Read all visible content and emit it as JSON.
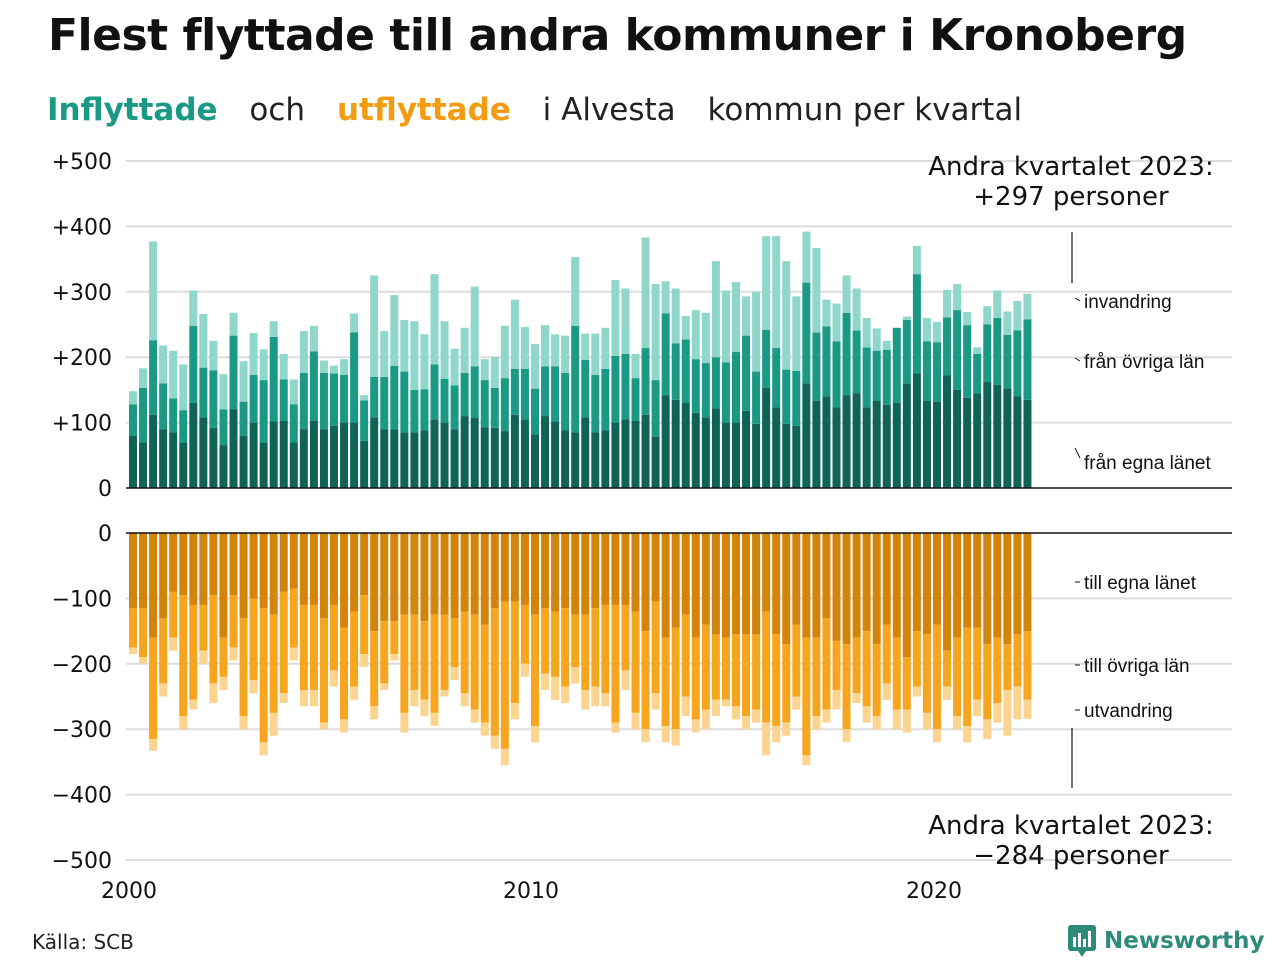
{
  "title": "Flest flyttade till andra kommuner i Kronoberg",
  "subtitle": {
    "part1": "Inflyttade",
    "part2": "och",
    "part3": "utflyttade",
    "part4": "i Alvesta",
    "part5": "kommun per kvartal"
  },
  "source": "Källa: SCB",
  "brand": "Newsworthy",
  "colors": {
    "inflow_own": "#0f6357",
    "inflow_other": "#1a9985",
    "inflow_immigration": "#8fd6cb",
    "outflow_own": "#d4830b",
    "outflow_other": "#f7a51f",
    "outflow_emigration": "#fbd48f",
    "grid": "#dddddd"
  },
  "chart_data": {
    "type": "bar",
    "stacked": true,
    "x_start": "2000 Q1",
    "x_ticks": [
      "2000",
      "2010",
      "2020"
    ],
    "y_ticks_top": [
      "+500",
      "+400",
      "+300",
      "+200",
      "+100",
      "0"
    ],
    "y_ticks_bottom": [
      "0",
      "−100",
      "−200",
      "−300",
      "−400",
      "−500"
    ],
    "ylim_top": [
      0,
      500
    ],
    "ylim_bottom": [
      -500,
      0
    ],
    "annotation_top": [
      "Andra kvartalet 2023:",
      "+297 personer"
    ],
    "annotation_bottom": [
      "Andra kvartalet 2023:",
      "−284 personer"
    ],
    "top_series_labels": [
      "invandring",
      "från övriga län",
      "från egna länet"
    ],
    "bottom_series_labels": [
      "till egna länet",
      "till övriga län",
      "utvandring"
    ],
    "inflow_totals": [
      148,
      183,
      377,
      218,
      210,
      189,
      302,
      266,
      225,
      174,
      268,
      194,
      237,
      212,
      255,
      205,
      166,
      240,
      248,
      195,
      187,
      197,
      267,
      142,
      325,
      240,
      295,
      257,
      255,
      235,
      327,
      255,
      213,
      245,
      308,
      197,
      200,
      248,
      288,
      246,
      220,
      249,
      235,
      233,
      353,
      236,
      236,
      245,
      318,
      305,
      205,
      383,
      312,
      316,
      305,
      263,
      272,
      268,
      347,
      302,
      315,
      293,
      300,
      385,
      385,
      347,
      293,
      392,
      367,
      288,
      282,
      325,
      305,
      260,
      244,
      225,
      227,
      262,
      370,
      260,
      254,
      303,
      312,
      269,
      215,
      278,
      302,
      270,
      286,
      297
    ],
    "inflow_own": [
      80,
      70,
      112,
      90,
      85,
      70,
      130,
      108,
      92,
      65,
      120,
      80,
      100,
      70,
      102,
      103,
      70,
      90,
      103,
      90,
      95,
      100,
      100,
      72,
      108,
      90,
      90,
      85,
      85,
      88,
      105,
      100,
      90,
      110,
      107,
      93,
      92,
      87,
      112,
      105,
      82,
      110,
      102,
      88,
      85,
      108,
      85,
      88,
      100,
      105,
      103,
      112,
      78,
      142,
      135,
      130,
      115,
      108,
      122,
      100,
      100,
      118,
      98,
      153,
      123,
      98,
      95,
      160,
      133,
      140,
      123,
      142,
      145,
      123,
      133,
      127,
      130,
      160,
      175,
      133,
      132,
      172,
      150,
      138,
      145,
      162,
      158,
      152,
      140,
      135
    ],
    "inflow_other": [
      48,
      83,
      114,
      70,
      52,
      49,
      118,
      76,
      88,
      55,
      113,
      52,
      73,
      95,
      129,
      63,
      58,
      86,
      106,
      86,
      80,
      73,
      138,
      62,
      62,
      80,
      97,
      93,
      65,
      63,
      84,
      67,
      67,
      66,
      79,
      72,
      61,
      81,
      70,
      77,
      70,
      76,
      84,
      88,
      163,
      88,
      88,
      94,
      102,
      100,
      65,
      102,
      87,
      125,
      86,
      97,
      82,
      83,
      78,
      92,
      108,
      115,
      80,
      89,
      91,
      83,
      84,
      154,
      105,
      107,
      101,
      126,
      96,
      92,
      77,
      84,
      115,
      97,
      152,
      91,
      91,
      89,
      122,
      111,
      60,
      88,
      102,
      82,
      101,
      123
    ],
    "inflow_immigration": [
      20,
      30,
      151,
      58,
      73,
      70,
      54,
      82,
      45,
      54,
      35,
      62,
      64,
      47,
      24,
      39,
      38,
      64,
      39,
      19,
      12,
      24,
      29,
      8,
      155,
      70,
      108,
      79,
      105,
      84,
      138,
      88,
      56,
      69,
      122,
      32,
      47,
      80,
      106,
      64,
      68,
      63,
      49,
      57,
      105,
      40,
      63,
      63,
      116,
      100,
      37,
      169,
      147,
      49,
      84,
      36,
      75,
      77,
      147,
      110,
      107,
      60,
      122,
      143,
      171,
      166,
      114,
      78,
      129,
      41,
      58,
      57,
      64,
      45,
      34,
      14,
      -18,
      5,
      43,
      36,
      31,
      42,
      40,
      20,
      10,
      28,
      42,
      36,
      45,
      39
    ],
    "outflow_totals": [
      -185,
      -200,
      -333,
      -250,
      -180,
      -300,
      -270,
      -200,
      -260,
      -240,
      -195,
      -300,
      -245,
      -340,
      -310,
      -260,
      -195,
      -265,
      -265,
      -300,
      -235,
      -305,
      -255,
      -205,
      -285,
      -240,
      -195,
      -305,
      -265,
      -280,
      -295,
      -250,
      -225,
      -265,
      -290,
      -310,
      -330,
      -355,
      -285,
      -220,
      -320,
      -240,
      -255,
      -260,
      -230,
      -270,
      -265,
      -265,
      -305,
      -240,
      -300,
      -320,
      -270,
      -320,
      -325,
      -280,
      -305,
      -300,
      -280,
      -265,
      -285,
      -300,
      -290,
      -340,
      -320,
      -310,
      -270,
      -355,
      -300,
      -290,
      -270,
      -320,
      -260,
      -290,
      -300,
      -255,
      -300,
      -305,
      -250,
      -300,
      -320,
      -255,
      -300,
      -320,
      -280,
      -315,
      -290,
      -310,
      -285,
      -284
    ],
    "outflow_own": [
      -115,
      -115,
      -160,
      -130,
      -90,
      -95,
      -110,
      -110,
      -95,
      -160,
      -95,
      -130,
      -100,
      -115,
      -125,
      -90,
      -85,
      -110,
      -110,
      -130,
      -110,
      -145,
      -120,
      -95,
      -150,
      -135,
      -135,
      -125,
      -125,
      -135,
      -125,
      -125,
      -130,
      -120,
      -125,
      -140,
      -115,
      -105,
      -105,
      -110,
      -125,
      -115,
      -120,
      -115,
      -125,
      -125,
      -115,
      -110,
      -110,
      -110,
      -120,
      -150,
      -105,
      -160,
      -145,
      -125,
      -160,
      -140,
      -155,
      -160,
      -155,
      -155,
      -155,
      -120,
      -155,
      -170,
      -140,
      -160,
      -160,
      -130,
      -165,
      -170,
      -160,
      -150,
      -170,
      -140,
      -160,
      -190,
      -150,
      -155,
      -140,
      -180,
      -160,
      -145,
      -145,
      -170,
      -160,
      -170,
      -155,
      -150
    ],
    "outflow_other": [
      -60,
      -75,
      -155,
      -100,
      -70,
      -185,
      -145,
      -70,
      -135,
      -60,
      -80,
      -150,
      -125,
      -205,
      -150,
      -155,
      -90,
      -130,
      -130,
      -160,
      -100,
      -140,
      -115,
      -90,
      -115,
      -95,
      -50,
      -150,
      -115,
      -120,
      -150,
      -115,
      -75,
      -125,
      -145,
      -150,
      -195,
      -225,
      -155,
      -90,
      -170,
      -100,
      -100,
      -120,
      -80,
      -115,
      -120,
      -135,
      -180,
      -100,
      -155,
      -150,
      -140,
      -135,
      -155,
      -125,
      -125,
      -130,
      -100,
      -95,
      -110,
      -125,
      -115,
      -170,
      -140,
      -120,
      -110,
      -180,
      -120,
      -140,
      -75,
      -130,
      -85,
      -115,
      -110,
      -90,
      -110,
      -80,
      -85,
      -120,
      -160,
      -55,
      -120,
      -150,
      -110,
      -115,
      -100,
      -70,
      -80,
      -105
    ],
    "outflow_emigration": [
      -10,
      -10,
      -18,
      -20,
      -20,
      -20,
      -15,
      -20,
      -30,
      -20,
      -20,
      -20,
      -20,
      -20,
      -35,
      -15,
      -20,
      -25,
      -25,
      -10,
      -25,
      -20,
      -20,
      -20,
      -20,
      -10,
      -10,
      -30,
      -25,
      -25,
      -20,
      -10,
      -20,
      -20,
      -20,
      -20,
      -20,
      -25,
      -25,
      -20,
      -25,
      -25,
      -35,
      -25,
      -25,
      -30,
      -30,
      -20,
      -15,
      -30,
      -25,
      -20,
      -25,
      -25,
      -25,
      -30,
      -20,
      -30,
      -25,
      -10,
      -20,
      -20,
      -20,
      -50,
      -25,
      -20,
      -20,
      -15,
      -20,
      -20,
      -30,
      -20,
      -15,
      -25,
      -20,
      -25,
      -30,
      -35,
      -15,
      -25,
      -20,
      -20,
      -20,
      -25,
      -25,
      -30,
      -30,
      -70,
      -50,
      -29
    ]
  }
}
